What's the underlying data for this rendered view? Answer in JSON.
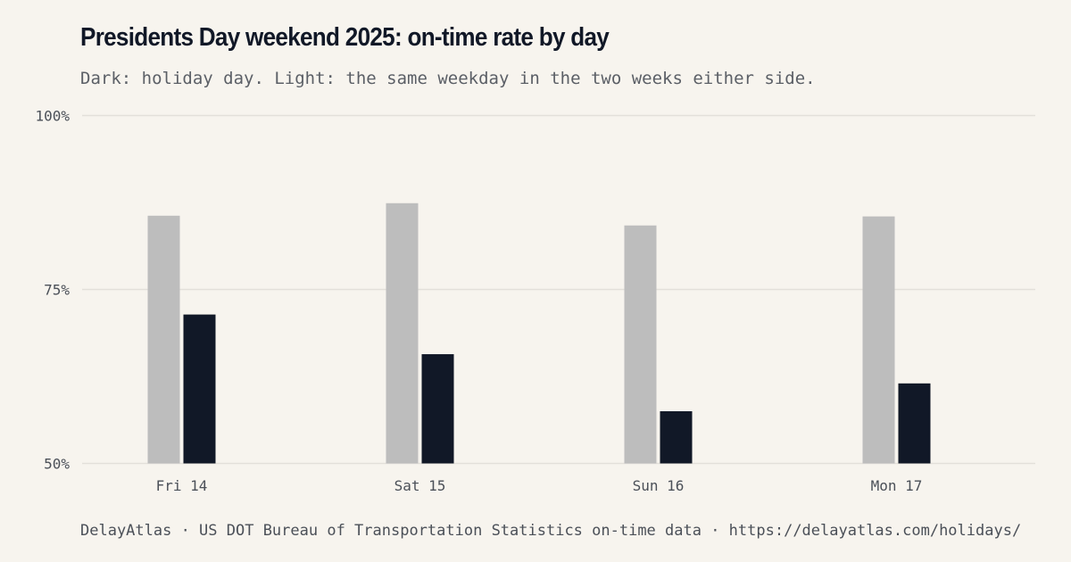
{
  "header": {
    "title": "Presidents Day weekend 2025: on-time rate by day",
    "subtitle": "Dark: holiday day. Light: the same weekday in the two weeks either side."
  },
  "footer": {
    "source": "DelayAtlas · US DOT Bureau of Transportation Statistics on-time data · https://delayatlas.com/holidays/"
  },
  "colors": {
    "baseline": "#bdbdbd",
    "holiday": "#111827",
    "grid": "#e3e0da"
  },
  "chart_data": {
    "type": "bar",
    "categories": [
      "Fri 14",
      "Sat 15",
      "Sun 16",
      "Mon 17"
    ],
    "series": [
      {
        "key": "baseline",
        "values": [
          85.6,
          87.4,
          84.2,
          85.5
        ]
      },
      {
        "key": "holiday",
        "values": [
          71.4,
          65.7,
          57.5,
          61.5
        ]
      }
    ],
    "ylim": [
      50,
      100
    ],
    "yticks": [
      50,
      75,
      100
    ],
    "ytick_labels": [
      "50%",
      "75%",
      "100%"
    ],
    "grid": true,
    "legend": "none"
  }
}
